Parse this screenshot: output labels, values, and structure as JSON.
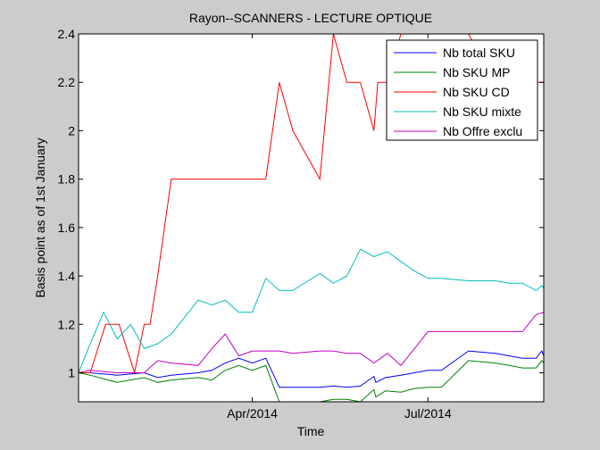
{
  "chart_data": {
    "type": "line",
    "title": "Rayon--SCANNERS - LECTURE OPTIQUE",
    "xlabel": "Time",
    "ylabel": "Basis point as of 1st January",
    "x_domain": [
      "2014-01-01",
      "2014-08-30"
    ],
    "ylim": [
      0.88,
      2.4
    ],
    "y_ticks": [
      1,
      1.2,
      1.4,
      1.6,
      1.8,
      2,
      2.2,
      2.4
    ],
    "y_tick_labels": [
      "1",
      "1.2",
      "1.4",
      "1.6",
      "1.8",
      "2",
      "2.2",
      "2.4"
    ],
    "x_ticks": [
      "2014-04-01",
      "2014-07-01"
    ],
    "x_tick_labels": [
      "Apr/2014",
      "Jul/2014"
    ],
    "grid": false,
    "legend_position": "top-right",
    "series": [
      {
        "name": "Nb total SKU",
        "color": "#0000ff",
        "x": [
          "2014-01-01",
          "2014-01-07",
          "2014-01-21",
          "2014-02-04",
          "2014-02-11",
          "2014-02-18",
          "2014-03-04",
          "2014-03-11",
          "2014-03-18",
          "2014-03-25",
          "2014-04-01",
          "2014-04-08",
          "2014-04-15",
          "2014-04-22",
          "2014-05-06",
          "2014-05-13",
          "2014-05-20",
          "2014-05-27",
          "2014-06-03",
          "2014-06-04",
          "2014-06-09",
          "2014-06-17",
          "2014-06-24",
          "2014-07-01",
          "2014-07-08",
          "2014-07-22",
          "2014-08-05",
          "2014-08-12",
          "2014-08-19",
          "2014-08-26",
          "2014-08-29",
          "2014-08-30"
        ],
        "y": [
          1.0,
          1.0,
          0.99,
          1.0,
          0.98,
          0.99,
          1.0,
          1.01,
          1.04,
          1.06,
          1.04,
          1.06,
          0.94,
          0.94,
          0.94,
          0.945,
          0.94,
          0.945,
          0.985,
          0.96,
          0.98,
          0.99,
          1.0,
          1.01,
          1.01,
          1.09,
          1.08,
          1.07,
          1.06,
          1.06,
          1.09,
          1.07
        ]
      },
      {
        "name": "Nb SKU MP",
        "color": "#008000",
        "x": [
          "2014-01-01",
          "2014-01-07",
          "2014-01-21",
          "2014-02-04",
          "2014-02-11",
          "2014-02-18",
          "2014-03-04",
          "2014-03-11",
          "2014-03-18",
          "2014-03-25",
          "2014-04-01",
          "2014-04-08",
          "2014-04-15",
          "2014-04-22",
          "2014-05-06",
          "2014-05-13",
          "2014-05-20",
          "2014-05-27",
          "2014-06-03",
          "2014-06-04",
          "2014-06-09",
          "2014-06-17",
          "2014-06-24",
          "2014-07-01",
          "2014-07-08",
          "2014-07-22",
          "2014-08-05",
          "2014-08-12",
          "2014-08-19",
          "2014-08-26",
          "2014-08-29",
          "2014-08-30"
        ],
        "y": [
          1.0,
          0.99,
          0.96,
          0.98,
          0.96,
          0.97,
          0.98,
          0.97,
          1.01,
          1.03,
          1.01,
          1.03,
          0.88,
          0.88,
          0.88,
          0.89,
          0.89,
          0.88,
          0.93,
          0.9,
          0.925,
          0.92,
          0.935,
          0.94,
          0.94,
          1.05,
          1.04,
          1.03,
          1.02,
          1.02,
          1.05,
          1.04
        ]
      },
      {
        "name": "Nb SKU CD",
        "color": "#ff0000",
        "x": [
          "2014-01-01",
          "2014-01-07",
          "2014-01-15",
          "2014-01-22",
          "2014-01-30",
          "2014-02-04",
          "2014-02-07",
          "2014-02-11",
          "2014-02-18",
          "2014-02-25",
          "2014-03-04",
          "2014-03-11",
          "2014-03-18",
          "2014-03-25",
          "2014-04-01",
          "2014-04-08",
          "2014-04-15",
          "2014-04-22",
          "2014-05-06",
          "2014-05-13",
          "2014-05-20",
          "2014-05-27",
          "2014-06-03",
          "2014-06-05",
          "2014-06-10",
          "2014-06-17",
          "2014-06-24",
          "2014-07-01",
          "2014-07-08",
          "2014-07-22",
          "2014-08-05",
          "2014-08-12",
          "2014-08-19",
          "2014-08-26",
          "2014-08-30"
        ],
        "y": [
          1.0,
          1.0,
          1.2,
          1.2,
          1.0,
          1.2,
          1.2,
          1.4,
          1.8,
          1.8,
          1.8,
          1.8,
          1.8,
          1.8,
          1.8,
          1.8,
          2.2,
          2.0,
          1.8,
          2.4,
          2.2,
          2.2,
          2.0,
          2.2,
          2.2,
          2.4,
          2.4,
          2.4,
          2.4,
          2.4,
          2.2,
          2.2,
          2.2,
          2.2,
          2.2
        ]
      },
      {
        "name": "Nb SKU mixte",
        "color": "#00bfbf",
        "x": [
          "2014-01-01",
          "2014-01-07",
          "2014-01-14",
          "2014-01-21",
          "2014-01-28",
          "2014-02-04",
          "2014-02-11",
          "2014-02-18",
          "2014-03-04",
          "2014-03-11",
          "2014-03-18",
          "2014-03-25",
          "2014-04-01",
          "2014-04-08",
          "2014-04-15",
          "2014-04-22",
          "2014-05-06",
          "2014-05-13",
          "2014-05-20",
          "2014-05-27",
          "2014-06-03",
          "2014-06-10",
          "2014-06-17",
          "2014-06-24",
          "2014-07-01",
          "2014-07-08",
          "2014-07-22",
          "2014-08-05",
          "2014-08-12",
          "2014-08-19",
          "2014-08-26",
          "2014-08-29",
          "2014-08-30"
        ],
        "y": [
          1.0,
          1.12,
          1.25,
          1.14,
          1.2,
          1.1,
          1.12,
          1.16,
          1.3,
          1.28,
          1.3,
          1.25,
          1.25,
          1.39,
          1.34,
          1.34,
          1.41,
          1.37,
          1.4,
          1.51,
          1.48,
          1.5,
          1.46,
          1.42,
          1.39,
          1.39,
          1.38,
          1.38,
          1.37,
          1.37,
          1.34,
          1.36,
          1.35
        ]
      },
      {
        "name": "Nb Offre exclu",
        "color": "#bf00bf",
        "x": [
          "2014-01-01",
          "2014-01-07",
          "2014-01-21",
          "2014-02-04",
          "2014-02-11",
          "2014-02-18",
          "2014-03-04",
          "2014-03-11",
          "2014-03-18",
          "2014-03-25",
          "2014-04-01",
          "2014-04-08",
          "2014-04-15",
          "2014-04-22",
          "2014-05-06",
          "2014-05-13",
          "2014-05-20",
          "2014-05-27",
          "2014-06-03",
          "2014-06-10",
          "2014-06-17",
          "2014-06-24",
          "2014-07-01",
          "2014-07-08",
          "2014-07-22",
          "2014-08-05",
          "2014-08-12",
          "2014-08-19",
          "2014-08-26",
          "2014-08-30"
        ],
        "y": [
          1.0,
          1.01,
          1.0,
          1.0,
          1.05,
          1.04,
          1.03,
          1.1,
          1.16,
          1.07,
          1.09,
          1.09,
          1.09,
          1.08,
          1.09,
          1.09,
          1.08,
          1.08,
          1.04,
          1.08,
          1.03,
          1.1,
          1.17,
          1.17,
          1.17,
          1.17,
          1.17,
          1.17,
          1.24,
          1.25
        ]
      }
    ]
  }
}
